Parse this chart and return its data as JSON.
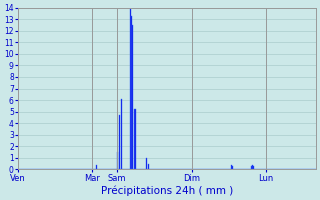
{
  "title": "Précipitations 24h ( mm )",
  "bar_color": "#0000dd",
  "bar_edge_color": "#3366ff",
  "background_color": "#cce8e8",
  "grid_color": "#aacccc",
  "tick_color": "#0000cc",
  "ylim": [
    0,
    14
  ],
  "yticks": [
    0,
    1,
    2,
    3,
    4,
    5,
    6,
    7,
    8,
    9,
    10,
    11,
    12,
    13,
    14
  ],
  "day_labels": [
    "Ven",
    "Mar",
    "Sam",
    "Dim",
    "Lun"
  ],
  "day_positions": [
    0,
    72,
    96,
    168,
    240
  ],
  "n_bars": 288,
  "bars": [
    0,
    0,
    0,
    0,
    0,
    0,
    0,
    0,
    0,
    0,
    0,
    0,
    0,
    0,
    0,
    0,
    0,
    0,
    0,
    0,
    0,
    0,
    0,
    0,
    0,
    0,
    0,
    0,
    0,
    0,
    0,
    0,
    0,
    0,
    0,
    0,
    0,
    0,
    0,
    0,
    0,
    0,
    0,
    0,
    0,
    0,
    0,
    0,
    0,
    0,
    0,
    0,
    0,
    0,
    0,
    0,
    0,
    0,
    0,
    0,
    0,
    0,
    0,
    0,
    0,
    0,
    0,
    0,
    0,
    0,
    0,
    0,
    0,
    0,
    0,
    0.4,
    0,
    0,
    0,
    0,
    0,
    0,
    0,
    0,
    0,
    0,
    0,
    0,
    0,
    0,
    0,
    0,
    0,
    0,
    0,
    0,
    1.5,
    0,
    4.7,
    0,
    6.1,
    0,
    0,
    0,
    0,
    0,
    0,
    0,
    14,
    13.3,
    12.5,
    0,
    5.2,
    5.2,
    0,
    0,
    0,
    0,
    0,
    0,
    0,
    0,
    0,
    0,
    1.0,
    0,
    0.5,
    0,
    0,
    0,
    0,
    0,
    0,
    0,
    0,
    0,
    0,
    0,
    0,
    0,
    0,
    0,
    0,
    0,
    0,
    0,
    0,
    0,
    0,
    0,
    0,
    0,
    0,
    0,
    0,
    0,
    0,
    0,
    0,
    0,
    0,
    0,
    0,
    0,
    0,
    0,
    0,
    0,
    0,
    0,
    0,
    0,
    0,
    0,
    0,
    0,
    0,
    0,
    0,
    0,
    0,
    0,
    0,
    0,
    0,
    0,
    0,
    0,
    0,
    0,
    0,
    0,
    0,
    0,
    0,
    0,
    0,
    0,
    0,
    0,
    0,
    0,
    0,
    0,
    0,
    0,
    0.4,
    0.3,
    0,
    0,
    0,
    0,
    0,
    0,
    0,
    0,
    0,
    0,
    0,
    0,
    0,
    0,
    0,
    0,
    0,
    0.3,
    0.4,
    0.3,
    0,
    0,
    0,
    0,
    0,
    0,
    0,
    0,
    0,
    0,
    0,
    0,
    0,
    0,
    0,
    0,
    0,
    0,
    0,
    0,
    0,
    0,
    0,
    0,
    0,
    0,
    0,
    0,
    0,
    0,
    0,
    0,
    0,
    0,
    0,
    0,
    0,
    0,
    0,
    0,
    0,
    0,
    0,
    0,
    0,
    0,
    0,
    0,
    0,
    0,
    0,
    0,
    0,
    0,
    0,
    0,
    0,
    0,
    0,
    0
  ]
}
